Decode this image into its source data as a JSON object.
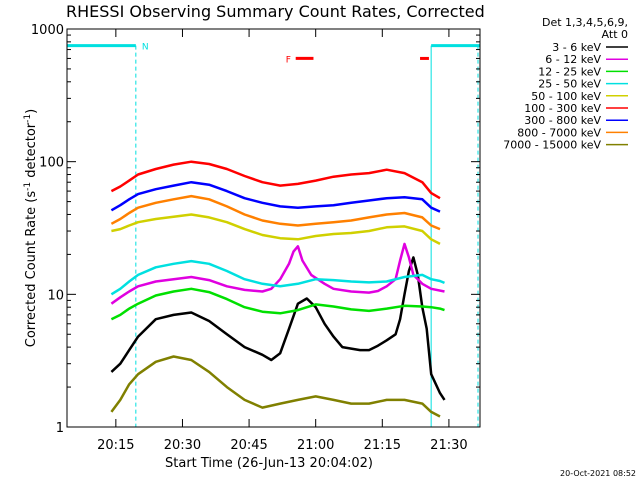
{
  "chart_data": {
    "type": "line",
    "title": "RHESSI Observing Summary Count Rates, Corrected",
    "xlabel": "Start Time (26-Jun-13 20:04:02)",
    "ylabel_main": "Corrected Count Rate (s",
    "ylabel_sup1": "-1",
    "ylabel_mid": " detector",
    "ylabel_sup2": "-1",
    "ylabel_end": ")",
    "y_scale": "log",
    "ylim": [
      1,
      1000
    ],
    "xlim_minutes": [
      0,
      93
    ],
    "x_ticks": [
      {
        "min": 11,
        "label": "20:15"
      },
      {
        "min": 26,
        "label": "20:30"
      },
      {
        "min": 41,
        "label": "20:45"
      },
      {
        "min": 56,
        "label": "21:00"
      },
      {
        "min": 71,
        "label": "21:15"
      },
      {
        "min": 86,
        "label": "21:30"
      }
    ],
    "y_ticks": [
      {
        "value": 1,
        "label": "1"
      },
      {
        "value": 10,
        "label": "10"
      },
      {
        "value": 100,
        "label": "100"
      },
      {
        "value": 1000,
        "label": "1000"
      }
    ],
    "legend_header": [
      "Det 1,3,4,5,6,9,",
      "Att 0"
    ],
    "flag_labels": {
      "night": "N",
      "flare": "F"
    },
    "timestamp": "20-Oct-2021 08:52",
    "night_bands": [
      {
        "start": 0,
        "end": 15.5,
        "level": 750
      },
      {
        "start": 82,
        "end": 93,
        "level": 750
      }
    ],
    "flare_bars": [
      {
        "start": 51.5,
        "end": 55.5,
        "level": 600
      },
      {
        "start": 79.5,
        "end": 81.5,
        "level": 600
      }
    ],
    "series": [
      {
        "name": "3 - 6 keV",
        "color": "#000000",
        "points": [
          [
            10,
            2.6
          ],
          [
            12,
            3
          ],
          [
            14,
            3.8
          ],
          [
            16,
            4.8
          ],
          [
            20,
            6.5
          ],
          [
            24,
            7
          ],
          [
            28,
            7.3
          ],
          [
            32,
            6.3
          ],
          [
            36,
            5
          ],
          [
            40,
            4
          ],
          [
            44,
            3.5
          ],
          [
            46,
            3.2
          ],
          [
            48,
            3.6
          ],
          [
            50,
            5.5
          ],
          [
            52,
            8.5
          ],
          [
            54,
            9.3
          ],
          [
            56,
            8
          ],
          [
            58,
            6
          ],
          [
            60,
            4.8
          ],
          [
            62,
            4
          ],
          [
            64,
            3.9
          ],
          [
            66,
            3.8
          ],
          [
            68,
            3.8
          ],
          [
            70,
            4.1
          ],
          [
            72,
            4.5
          ],
          [
            74,
            5
          ],
          [
            75,
            6.5
          ],
          [
            76,
            10
          ],
          [
            77,
            15
          ],
          [
            78,
            19
          ],
          [
            79,
            14
          ],
          [
            80,
            8
          ],
          [
            81,
            5.5
          ],
          [
            82,
            2.5
          ],
          [
            84,
            1.8
          ],
          [
            85,
            1.6
          ]
        ]
      },
      {
        "name": "6 - 12 keV",
        "color": "#e000e0",
        "points": [
          [
            10,
            8.5
          ],
          [
            12,
            9.5
          ],
          [
            14,
            10.5
          ],
          [
            16,
            11.5
          ],
          [
            20,
            12.5
          ],
          [
            24,
            13
          ],
          [
            28,
            13.5
          ],
          [
            32,
            12.8
          ],
          [
            36,
            11.5
          ],
          [
            40,
            10.8
          ],
          [
            44,
            10.5
          ],
          [
            46,
            11
          ],
          [
            48,
            13
          ],
          [
            50,
            17
          ],
          [
            51,
            21
          ],
          [
            52,
            23
          ],
          [
            53,
            18
          ],
          [
            55,
            14
          ],
          [
            58,
            12
          ],
          [
            60,
            11
          ],
          [
            64,
            10.5
          ],
          [
            68,
            10.3
          ],
          [
            70,
            10.6
          ],
          [
            72,
            11.5
          ],
          [
            74,
            13
          ],
          [
            75,
            18
          ],
          [
            76,
            24
          ],
          [
            77,
            19
          ],
          [
            78,
            14
          ],
          [
            80,
            12
          ],
          [
            82,
            11
          ],
          [
            85,
            10.5
          ]
        ]
      },
      {
        "name": "12 - 25 keV",
        "color": "#00e000",
        "points": [
          [
            10,
            6.5
          ],
          [
            12,
            7
          ],
          [
            14,
            7.8
          ],
          [
            16,
            8.5
          ],
          [
            20,
            9.8
          ],
          [
            24,
            10.5
          ],
          [
            28,
            11
          ],
          [
            32,
            10.4
          ],
          [
            36,
            9.2
          ],
          [
            40,
            8
          ],
          [
            44,
            7.4
          ],
          [
            48,
            7.2
          ],
          [
            52,
            7.6
          ],
          [
            56,
            8.4
          ],
          [
            60,
            8.1
          ],
          [
            64,
            7.7
          ],
          [
            68,
            7.5
          ],
          [
            72,
            7.8
          ],
          [
            76,
            8.2
          ],
          [
            80,
            8.1
          ],
          [
            82,
            8
          ],
          [
            84,
            7.8
          ],
          [
            85,
            7.6
          ]
        ]
      },
      {
        "name": "25 - 50 keV",
        "color": "#00e0e0",
        "points": [
          [
            10,
            10
          ],
          [
            12,
            11
          ],
          [
            14,
            12.5
          ],
          [
            16,
            14
          ],
          [
            20,
            16
          ],
          [
            24,
            17
          ],
          [
            28,
            17.8
          ],
          [
            32,
            17
          ],
          [
            36,
            15
          ],
          [
            40,
            13
          ],
          [
            44,
            12
          ],
          [
            48,
            11.5
          ],
          [
            52,
            12
          ],
          [
            56,
            13
          ],
          [
            60,
            12.8
          ],
          [
            64,
            12.5
          ],
          [
            68,
            12.3
          ],
          [
            72,
            12.5
          ],
          [
            76,
            13.5
          ],
          [
            80,
            14
          ],
          [
            82,
            13
          ],
          [
            84,
            12.6
          ],
          [
            85,
            12.2
          ]
        ]
      },
      {
        "name": "50 - 100 keV",
        "color": "#d0d000",
        "points": [
          [
            10,
            30
          ],
          [
            12,
            31
          ],
          [
            14,
            33
          ],
          [
            16,
            35
          ],
          [
            20,
            37
          ],
          [
            24,
            38.5
          ],
          [
            28,
            40
          ],
          [
            32,
            38
          ],
          [
            36,
            35
          ],
          [
            40,
            31
          ],
          [
            44,
            28
          ],
          [
            48,
            26.5
          ],
          [
            52,
            26
          ],
          [
            56,
            27.5
          ],
          [
            60,
            28.5
          ],
          [
            64,
            29
          ],
          [
            68,
            30
          ],
          [
            72,
            32
          ],
          [
            76,
            32.5
          ],
          [
            80,
            30
          ],
          [
            82,
            26
          ],
          [
            84,
            24
          ]
        ]
      },
      {
        "name": "100 - 300 keV",
        "color": "#ff0000",
        "points": [
          [
            10,
            60
          ],
          [
            12,
            65
          ],
          [
            14,
            72
          ],
          [
            16,
            80
          ],
          [
            20,
            88
          ],
          [
            24,
            95
          ],
          [
            28,
            100
          ],
          [
            32,
            96
          ],
          [
            36,
            88
          ],
          [
            40,
            78
          ],
          [
            44,
            70
          ],
          [
            48,
            66
          ],
          [
            52,
            68
          ],
          [
            56,
            72
          ],
          [
            60,
            77
          ],
          [
            64,
            80
          ],
          [
            68,
            82
          ],
          [
            72,
            87
          ],
          [
            76,
            82
          ],
          [
            80,
            70
          ],
          [
            82,
            58
          ],
          [
            84,
            53
          ]
        ]
      },
      {
        "name": "300 - 800 keV",
        "color": "#0000ff",
        "points": [
          [
            10,
            43
          ],
          [
            12,
            47
          ],
          [
            14,
            52
          ],
          [
            16,
            57
          ],
          [
            20,
            62
          ],
          [
            24,
            66
          ],
          [
            28,
            70
          ],
          [
            32,
            67
          ],
          [
            36,
            60
          ],
          [
            40,
            53
          ],
          [
            44,
            49
          ],
          [
            48,
            46
          ],
          [
            52,
            45
          ],
          [
            56,
            46
          ],
          [
            60,
            47
          ],
          [
            64,
            49
          ],
          [
            68,
            51
          ],
          [
            72,
            53
          ],
          [
            76,
            54
          ],
          [
            80,
            52
          ],
          [
            82,
            45
          ],
          [
            84,
            42
          ]
        ]
      },
      {
        "name": "800 - 7000 keV",
        "color": "#ff8000",
        "points": [
          [
            10,
            34
          ],
          [
            12,
            37
          ],
          [
            14,
            41
          ],
          [
            16,
            45
          ],
          [
            20,
            49
          ],
          [
            24,
            52
          ],
          [
            28,
            55
          ],
          [
            32,
            52
          ],
          [
            36,
            46
          ],
          [
            40,
            40
          ],
          [
            44,
            36
          ],
          [
            48,
            34
          ],
          [
            52,
            33
          ],
          [
            56,
            34
          ],
          [
            60,
            35
          ],
          [
            64,
            36
          ],
          [
            68,
            38
          ],
          [
            72,
            40
          ],
          [
            76,
            41
          ],
          [
            80,
            38
          ],
          [
            82,
            33
          ],
          [
            84,
            31
          ]
        ]
      },
      {
        "name": "7000 - 15000 keV",
        "color": "#808000",
        "points": [
          [
            10,
            1.3
          ],
          [
            12,
            1.6
          ],
          [
            14,
            2.1
          ],
          [
            16,
            2.5
          ],
          [
            20,
            3.1
          ],
          [
            24,
            3.4
          ],
          [
            28,
            3.2
          ],
          [
            32,
            2.6
          ],
          [
            36,
            2
          ],
          [
            40,
            1.6
          ],
          [
            44,
            1.4
          ],
          [
            48,
            1.5
          ],
          [
            52,
            1.6
          ],
          [
            56,
            1.7
          ],
          [
            60,
            1.6
          ],
          [
            64,
            1.5
          ],
          [
            68,
            1.5
          ],
          [
            72,
            1.6
          ],
          [
            76,
            1.6
          ],
          [
            80,
            1.5
          ],
          [
            82,
            1.3
          ],
          [
            84,
            1.2
          ]
        ]
      }
    ]
  }
}
